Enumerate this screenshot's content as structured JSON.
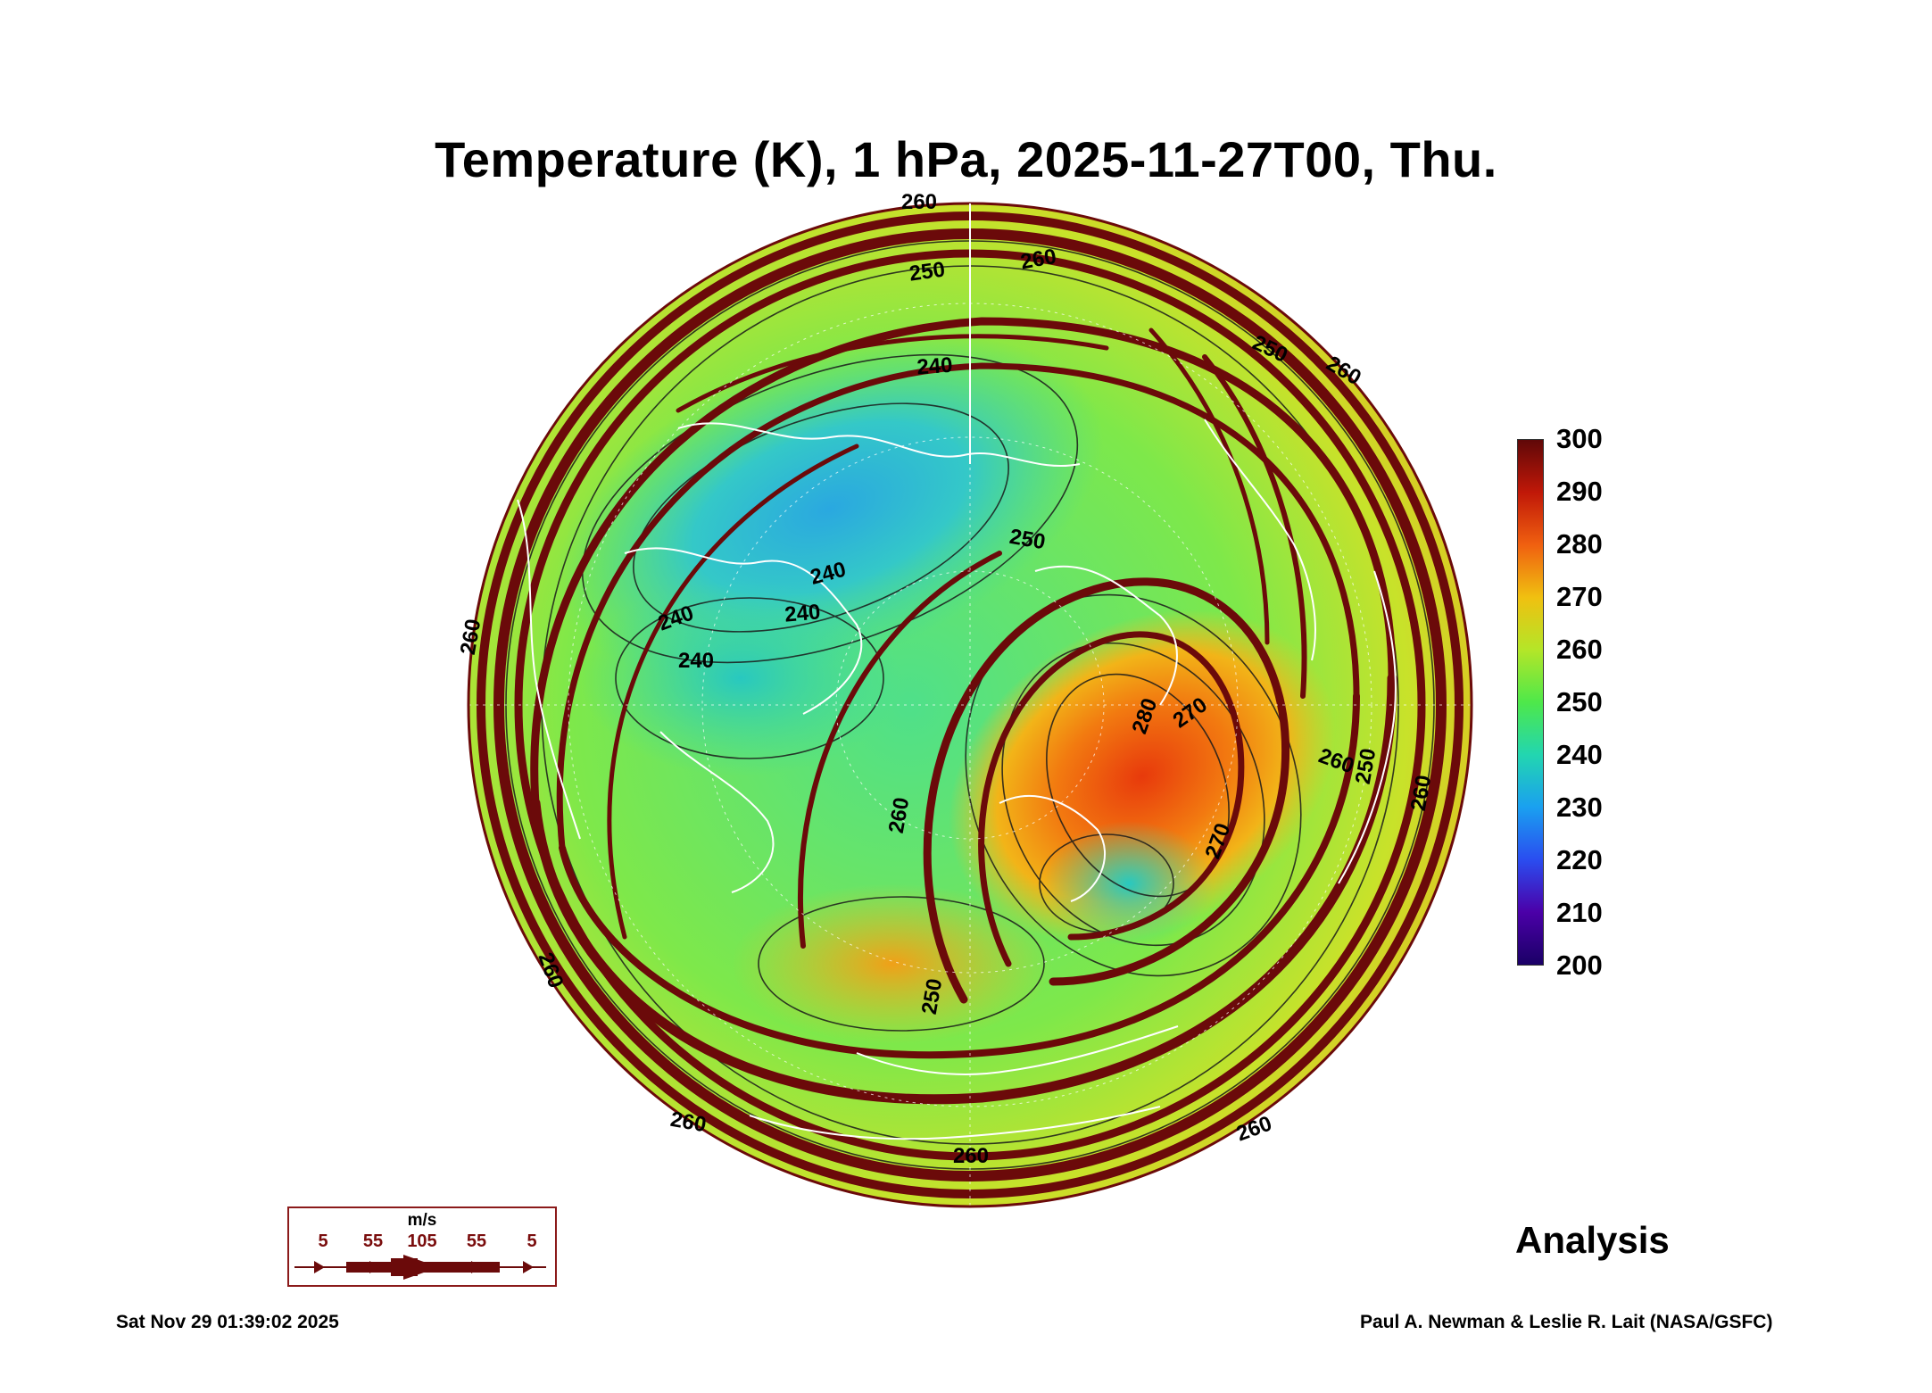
{
  "title": "Temperature (K), 1 hPa, 2025-11-27T00, Thu.",
  "colorbar": {
    "ticks": [
      "300",
      "290",
      "280",
      "270",
      "260",
      "250",
      "240",
      "230",
      "220",
      "210",
      "200"
    ],
    "min": 200,
    "max": 300,
    "colors": [
      "#1a0066",
      "#4b00a8",
      "#2a4df0",
      "#1aa0f0",
      "#22d6b0",
      "#4ee84a",
      "#b4e628",
      "#f0c010",
      "#f06010",
      "#c01808",
      "#600808"
    ]
  },
  "contour_labels": [
    "260",
    "250",
    "260",
    "240",
    "250",
    "260",
    "260",
    "240",
    "240",
    "250",
    "240",
    "240",
    "260",
    "280",
    "270",
    "260",
    "250",
    "260",
    "260",
    "260",
    "260",
    "250",
    "270",
    "260"
  ],
  "wind_legend": {
    "unit": "m/s",
    "values": [
      "5",
      "55",
      "105",
      "55",
      "5"
    ]
  },
  "analysis_label": "Analysis",
  "footer": {
    "timestamp": "Sat Nov 29 01:39:02 2025",
    "credit": "Paul A. Newman & Leslie R. Lait (NASA/GSFC)"
  },
  "map": {
    "projection": "orthographic, North Pole",
    "wind_color": "#6b0a0a",
    "coastline_color": "#ffffff"
  }
}
